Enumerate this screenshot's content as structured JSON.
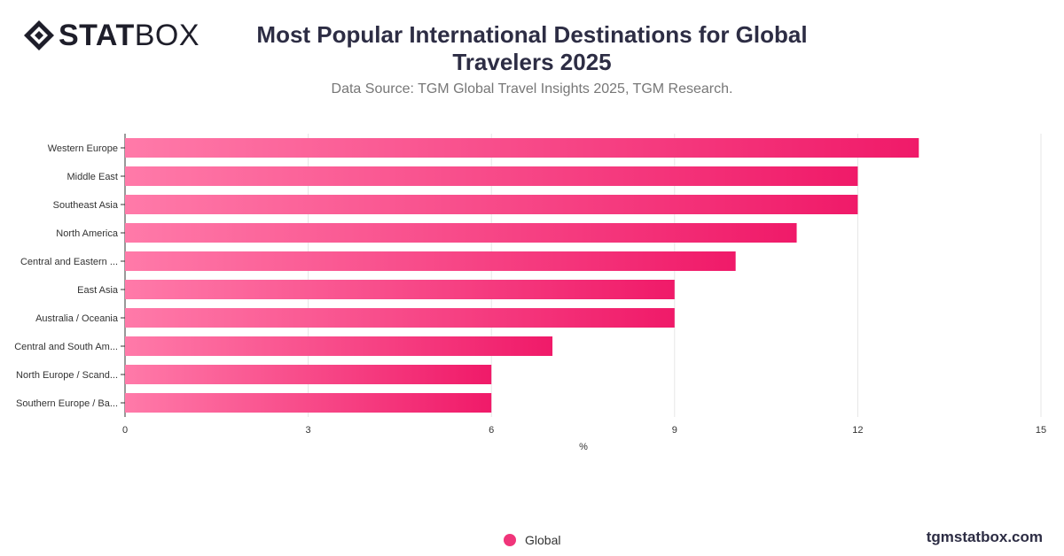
{
  "brand": {
    "logo_text_bold": "STAT",
    "logo_text_light": "BOX",
    "site": "tgmstatbox.com"
  },
  "title": "Most Popular International Destinations for Global Travelers 2025",
  "subtitle": "Data Source: TGM Global Travel Insights 2025, TGM Research.",
  "legend": {
    "label": "Global"
  },
  "colors": {
    "bar_start": "#ff7aa9",
    "bar_end": "#f01a69",
    "grid": "#e6e6e6",
    "axis": "#333333"
  },
  "chart_data": {
    "type": "bar",
    "orientation": "horizontal",
    "categories": [
      "Western Europe",
      "Middle East",
      "Southeast Asia",
      "North America",
      "Central and Eastern ...",
      "East Asia",
      "Australia / Oceania",
      "Central and South Am...",
      "North Europe / Scand...",
      "Southern Europe / Ba..."
    ],
    "series": [
      {
        "name": "Global",
        "values": [
          13,
          12,
          12,
          11,
          10,
          9,
          9,
          7,
          6,
          6
        ]
      }
    ],
    "xlabel": "%",
    "ylabel": "",
    "xlim": [
      0,
      15
    ],
    "xticks": [
      0,
      3,
      6,
      9,
      12,
      15
    ],
    "grid": true,
    "legend_position": "bottom"
  }
}
